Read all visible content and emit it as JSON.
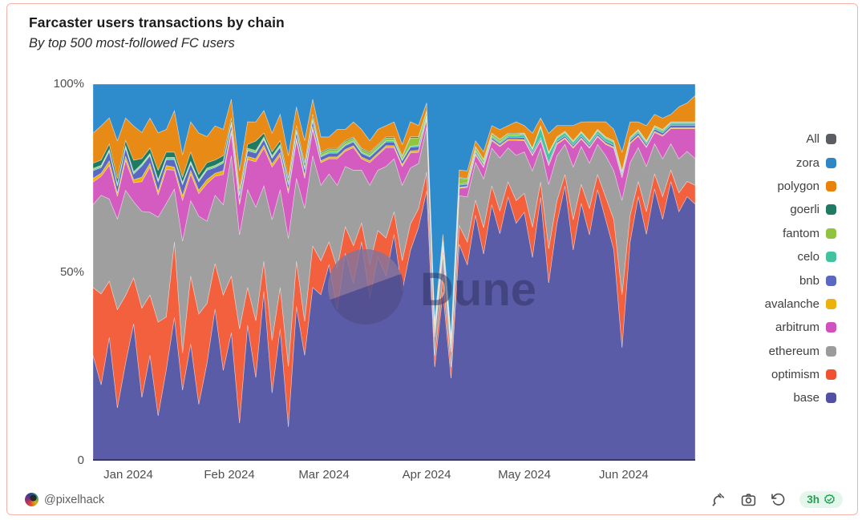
{
  "header": {
    "title": "Farcaster users transactions by chain",
    "subtitle": "By top 500 most-followed FC users"
  },
  "legend": [
    {
      "label": "All",
      "color": "#5a5e63"
    },
    {
      "label": "zora",
      "color": "#2e86c7"
    },
    {
      "label": "polygon",
      "color": "#e8820b"
    },
    {
      "label": "goerli",
      "color": "#1e7a63"
    },
    {
      "label": "fantom",
      "color": "#90c43e"
    },
    {
      "label": "celo",
      "color": "#41c3a0"
    },
    {
      "label": "bnb",
      "color": "#5a68c2"
    },
    {
      "label": "avalanche",
      "color": "#edb10c"
    },
    {
      "label": "arbitrum",
      "color": "#d050be"
    },
    {
      "label": "ethereum",
      "color": "#9b9b9b"
    },
    {
      "label": "optimism",
      "color": "#f0512e"
    },
    {
      "label": "base",
      "color": "#5250a0"
    }
  ],
  "footer": {
    "author": "@pixelhack",
    "actions": {
      "fork": "fork",
      "screenshot": "screenshot",
      "refresh": "refresh",
      "refreshed_label": "3h"
    }
  },
  "chart_data": {
    "type": "area",
    "stacked": true,
    "percentage": true,
    "title": "Farcaster users transactions by chain",
    "x_range": [
      "late Dec 2023",
      "late Jun 2024"
    ],
    "ylim": [
      0,
      100
    ],
    "grid": false,
    "legend_position": "right",
    "watermark": {
      "text": "Dune",
      "circle_top_color": "#8a7398",
      "circle_bottom_color": "#53508f",
      "text_color": "#2c2d5e"
    },
    "y_axis": {
      "ticks": [
        {
          "label": "0",
          "value": 0
        },
        {
          "label": "50%",
          "value": 50
        },
        {
          "label": "100%",
          "value": 100
        }
      ]
    },
    "x_axis": {
      "ticks": [
        {
          "label": "Jan 2024",
          "pos": 0.0586
        },
        {
          "label": "Feb 2024",
          "pos": 0.2264
        },
        {
          "label": "Mar 2024",
          "pos": 0.3835
        },
        {
          "label": "Apr 2024",
          "pos": 0.554
        },
        {
          "label": "May 2024",
          "pos": 0.7164
        },
        {
          "label": "Jun 2024",
          "pos": 0.8814
        }
      ]
    },
    "series_note": "share of transactions (%), ~2.5 day resolution, stacked bottom-to-top; values normalized to 100%",
    "series": [
      {
        "name": "base",
        "color": "#5a5ca8",
        "values": [
          28,
          20,
          33,
          14,
          26,
          36,
          17,
          28,
          12,
          24,
          38,
          19,
          31,
          15,
          26,
          40,
          24,
          34,
          10,
          36,
          22,
          45,
          18,
          35,
          9,
          41,
          28,
          46,
          44,
          52,
          40,
          55,
          47,
          58,
          43,
          54,
          49,
          60,
          45,
          56,
          62,
          72,
          25,
          45,
          22,
          58,
          52,
          65,
          55,
          68,
          60,
          70,
          63,
          66,
          54,
          70,
          47,
          63,
          73,
          56,
          68,
          60,
          72,
          64,
          56,
          30,
          58,
          70,
          60,
          72,
          64,
          74,
          66,
          70,
          68
        ]
      },
      {
        "name": "optimism",
        "color": "#f2603e",
        "values": [
          18,
          24,
          15,
          26,
          18,
          12,
          24,
          16,
          25,
          14,
          20,
          10,
          18,
          24,
          16,
          12,
          20,
          15,
          25,
          10,
          15,
          8,
          14,
          11,
          16,
          12,
          9,
          11,
          9,
          6,
          11,
          7,
          10,
          5,
          9,
          7,
          10,
          6,
          8,
          7,
          5,
          5,
          3,
          4,
          3,
          5,
          6,
          4,
          7,
          5,
          6,
          4,
          6,
          5,
          8,
          4,
          9,
          6,
          3,
          8,
          5,
          7,
          4,
          6,
          8,
          14,
          7,
          4,
          6,
          4,
          6,
          3,
          5,
          4,
          5
        ]
      },
      {
        "name": "ethereum",
        "color": "#a09fa0",
        "values": [
          22,
          26,
          22,
          24,
          28,
          20,
          26,
          22,
          28,
          30,
          14,
          30,
          20,
          26,
          22,
          18,
          24,
          32,
          25,
          26,
          30,
          20,
          32,
          26,
          34,
          22,
          30,
          24,
          20,
          18,
          22,
          16,
          20,
          14,
          21,
          16,
          19,
          14,
          20,
          15,
          12,
          12,
          5,
          6,
          4,
          8,
          12,
          10,
          13,
          10,
          14,
          9,
          12,
          11,
          15,
          9,
          17,
          12,
          8,
          14,
          10,
          12,
          8,
          11,
          13,
          25,
          14,
          9,
          12,
          8,
          10,
          7,
          9,
          8,
          7
        ]
      },
      {
        "name": "arbitrum",
        "color": "#d45cc0",
        "values": [
          6,
          5,
          9,
          6,
          8,
          5,
          8,
          12,
          6,
          9,
          5,
          11,
          7,
          6,
          10,
          5,
          8,
          6,
          8,
          8,
          12,
          10,
          14,
          9,
          12,
          10,
          8,
          7,
          6,
          4,
          7,
          4,
          6,
          3,
          6,
          4,
          5,
          3,
          5,
          4,
          3,
          2,
          1,
          1.5,
          1,
          2,
          2.5,
          2,
          3,
          2,
          3,
          2,
          4,
          3,
          4,
          2,
          5,
          3,
          1.5,
          5,
          2,
          4,
          2,
          3,
          6,
          6,
          5,
          3,
          5,
          3,
          6,
          4,
          8,
          6,
          8
        ]
      },
      {
        "name": "avalanche",
        "color": "#eeb10a",
        "values": [
          1,
          0.8,
          1.2,
          0.9,
          1.1,
          0.8,
          1.2,
          1,
          0.9,
          1.1,
          0.8,
          1.2,
          1,
          0.9,
          1.1,
          0.8,
          1,
          0.8,
          0.8,
          0.8,
          0.8,
          0.8,
          0.8,
          0.8,
          0.8,
          0.8,
          0.8,
          0.8,
          0.5,
          0.5,
          0.5,
          0.5,
          0.5,
          0.5,
          0.5,
          0.5,
          0.5,
          0.5,
          0.5,
          0.5,
          0.5,
          0.3,
          0.3,
          0.3,
          0.3,
          0.3,
          0.3,
          0.3,
          0.3,
          0.3,
          0.3,
          0.3,
          0.3,
          0.3,
          0.3,
          0.3,
          0.3,
          0.3,
          0.3,
          0.3,
          0.3,
          0.3,
          0.3,
          0.3,
          0.3,
          0.3,
          0.3,
          0.3,
          0.3,
          0.3,
          0.3,
          0.3,
          0.3,
          0.3,
          0.3
        ]
      },
      {
        "name": "bnb",
        "color": "#5a68c2",
        "values": [
          2,
          1.5,
          2.5,
          1.8,
          2.2,
          1.5,
          3,
          2,
          2.5,
          1.5,
          2,
          3,
          1.8,
          2.2,
          2.5,
          1.5,
          2,
          1.5,
          1.5,
          1.5,
          1.5,
          1.5,
          1.5,
          1.5,
          1.5,
          1.5,
          1.5,
          1.5,
          1,
          1,
          1,
          1,
          1,
          1,
          1,
          1,
          1,
          1,
          1,
          1,
          1,
          0.5,
          0.5,
          0.5,
          0.5,
          0.5,
          0.5,
          0.5,
          0.5,
          0.5,
          0.5,
          0.5,
          0.5,
          0.5,
          0.5,
          0.5,
          0.5,
          0.5,
          0.5,
          0.5,
          0.5,
          0.5,
          0.5,
          0.5,
          0.5,
          0.6,
          0.6,
          0.6,
          0.6,
          0.6,
          0.6,
          0.6,
          0.6,
          0.6,
          0.6
        ]
      },
      {
        "name": "celo",
        "color": "#42c5a2",
        "values": [
          0.3,
          0.3,
          0.3,
          0.3,
          0.3,
          0.3,
          0.3,
          0.3,
          0.3,
          0.3,
          0.3,
          0.3,
          0.3,
          0.3,
          0.3,
          0.3,
          0.3,
          0.3,
          0.3,
          0.3,
          0.3,
          0.3,
          0.3,
          0.3,
          0.3,
          0.3,
          0.3,
          0.3,
          0.3,
          0.3,
          0.3,
          0.3,
          0.3,
          0.3,
          0.3,
          0.3,
          0.3,
          0.3,
          0.3,
          0.3,
          0.3,
          0.4,
          0.4,
          0.4,
          0.4,
          0.4,
          0.4,
          0.4,
          0.4,
          0.4,
          0.4,
          0.4,
          0.4,
          0.8,
          0.8,
          2.8,
          2.3,
          0.8,
          0.8,
          0.8,
          0.8,
          0.8,
          0.8,
          0.8,
          0.8,
          0.5,
          0.5,
          0.5,
          0.5,
          0.5,
          0.5,
          0.5,
          0.5,
          0.5,
          0.5
        ]
      },
      {
        "name": "fantom",
        "color": "#92c53e",
        "values": [
          0.3,
          0.3,
          0.3,
          0.3,
          0.3,
          0.3,
          0.3,
          0.3,
          0.3,
          0.3,
          0.3,
          0.3,
          0.3,
          0.3,
          0.3,
          0.3,
          0.3,
          0.4,
          0.4,
          0.4,
          0.4,
          0.4,
          0.4,
          0.4,
          0.4,
          0.4,
          0.4,
          0.4,
          0.7,
          0.7,
          0.7,
          0.7,
          0.7,
          0.7,
          0.7,
          0.7,
          0.7,
          0.7,
          0.7,
          2.2,
          2,
          1,
          1,
          1,
          1,
          1.5,
          1,
          0.8,
          0.8,
          0.6,
          0.6,
          0.5,
          0.5,
          0.3,
          0.3,
          0.3,
          0.3,
          0.3,
          0.3,
          0.3,
          0.3,
          0.3,
          0.3,
          0.3,
          0.3,
          0.3,
          0.3,
          0.3,
          0.3,
          0.3,
          0.3,
          0.3,
          0.3,
          0.3,
          0.3
        ]
      },
      {
        "name": "goerli",
        "color": "#1e7a63",
        "values": [
          1.4,
          1.4,
          1.4,
          1.4,
          1.4,
          3,
          1.4,
          1.4,
          2.5,
          1.4,
          1.4,
          1.4,
          2.5,
          1.4,
          1.4,
          1.4,
          1.4,
          1,
          1,
          1,
          2.5,
          1,
          1,
          1,
          1,
          1,
          1,
          1,
          0.3,
          0.3,
          0.3,
          0.3,
          0.3,
          0.3,
          0.3,
          0.3,
          0.3,
          0.3,
          0.3,
          0.3,
          0.3,
          0.2,
          0.2,
          0.2,
          0.2,
          0.2,
          0.2,
          0.2,
          0.2,
          0.2,
          0.2,
          0.2,
          0.2,
          0.1,
          0.1,
          0.1,
          0.1,
          0.1,
          0.1,
          0.1,
          0.1,
          0.1,
          0.1,
          0.1,
          0.1,
          0.1,
          0.1,
          0.1,
          0.1,
          0.1,
          0.1,
          0.1,
          0.1,
          0.1,
          0.1
        ]
      },
      {
        "name": "polygon",
        "color": "#e88a16",
        "values": [
          8,
          9,
          7,
          10,
          6,
          9,
          7,
          8,
          10,
          6,
          11,
          6,
          8,
          11,
          7,
          9,
          7,
          5,
          5,
          6,
          5,
          6,
          5,
          7,
          6,
          5,
          6,
          4,
          4,
          3,
          5,
          3,
          4,
          5,
          3,
          4,
          3,
          4,
          3,
          4,
          3,
          2,
          1,
          1.5,
          1,
          2,
          2,
          1.5,
          2,
          2,
          2.5,
          2,
          3,
          2,
          4,
          2,
          5,
          3,
          1.5,
          4,
          2.5,
          5,
          2,
          4,
          3,
          5,
          4,
          2,
          4,
          3,
          3,
          2,
          4,
          5,
          7
        ]
      },
      {
        "name": "zora",
        "color": "#2f8ccc",
        "values": [
          13,
          11,
          9,
          15,
          9,
          11,
          13,
          9,
          13,
          12,
          7,
          19,
          10,
          13,
          14,
          11,
          12,
          4,
          23,
          10,
          10,
          7,
          13,
          8,
          19,
          6,
          15,
          4,
          14,
          14,
          12,
          12,
          10,
          12,
          15,
          12,
          11,
          10,
          16,
          10,
          11,
          5,
          63,
          40,
          67,
          23,
          23,
          15,
          18,
          11,
          12,
          11,
          10,
          11,
          13,
          9,
          13,
          11,
          11,
          11,
          10,
          10,
          10,
          10,
          12,
          18,
          10,
          10,
          11,
          8,
          9,
          8,
          6,
          5,
          3
        ]
      }
    ]
  }
}
